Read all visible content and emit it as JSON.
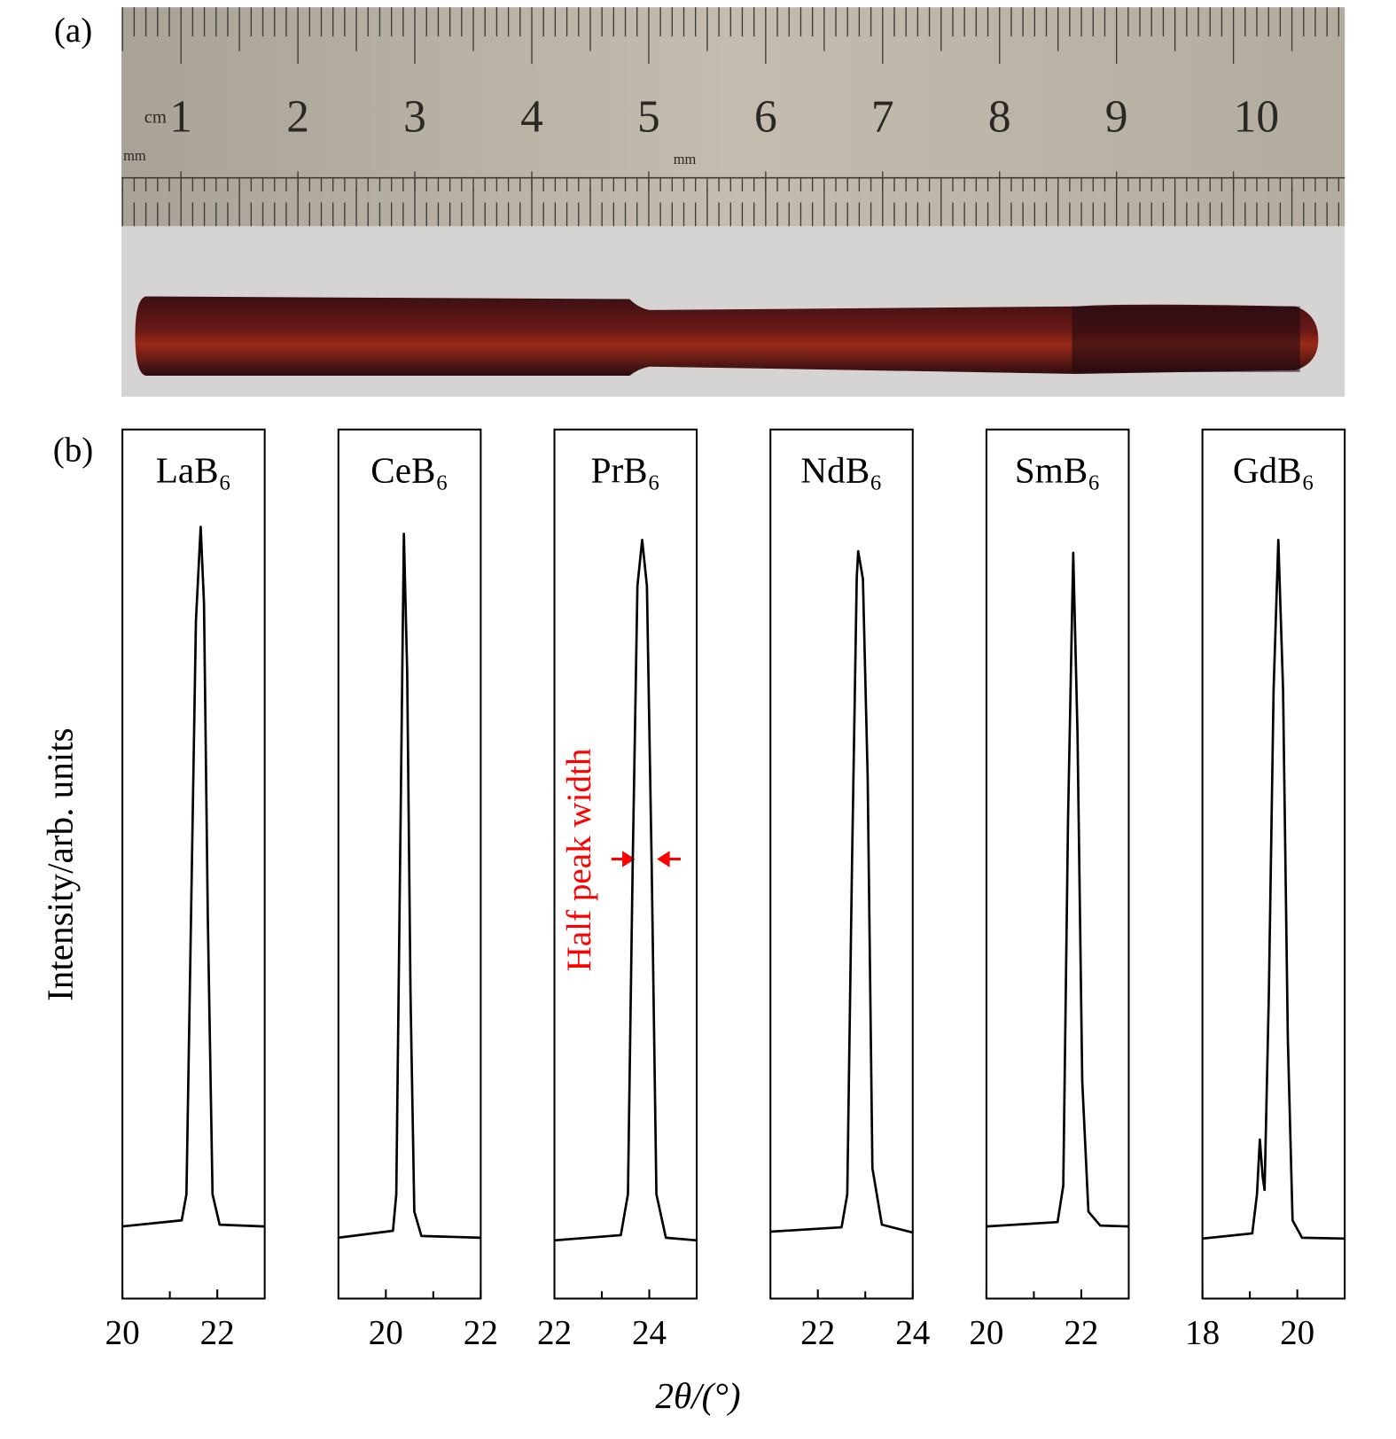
{
  "figure": {
    "label_a": "(a)",
    "label_b": "(b)",
    "xlabel": "2θ/(°)",
    "ylabel": "Intensity/arb. units",
    "annotation": "Half peak width"
  },
  "ruler": {
    "unit_cm": "cm",
    "unit_mm": [
      "mm",
      "mm"
    ],
    "numbers": [
      1,
      2,
      3,
      4,
      5,
      6,
      7,
      8,
      9,
      10
    ]
  },
  "chart_data": [
    {
      "type": "line",
      "title": "LaB₆",
      "color": "#000000",
      "xlim": [
        20,
        23
      ],
      "xticks": [
        20,
        22
      ],
      "xminorticks": [
        21
      ],
      "ylim": [
        0,
        100
      ],
      "x": [
        20,
        21.25,
        21.35,
        21.45,
        21.55,
        21.65,
        21.72,
        21.8,
        21.9,
        22.05,
        23
      ],
      "values": [
        8.3,
        9,
        12,
        45,
        78,
        88.8,
        80,
        44,
        12,
        8.5,
        8.3
      ]
    },
    {
      "type": "line",
      "title": "CeB₆",
      "color": "#000000",
      "xlim": [
        19,
        22
      ],
      "xticks": [
        20,
        22
      ],
      "xminorticks": [
        21
      ],
      "ylim": [
        0,
        100
      ],
      "x": [
        19,
        20.15,
        20.22,
        20.3,
        20.38,
        20.45,
        20.52,
        20.6,
        20.75,
        22
      ],
      "values": [
        7.0,
        7.8,
        12,
        50,
        88,
        72,
        35,
        10,
        7.2,
        7.0
      ]
    },
    {
      "type": "line",
      "title": "PrB₆",
      "color": "#000000",
      "xlim": [
        22,
        25
      ],
      "xticks": [
        22,
        24
      ],
      "xminorticks": [
        23
      ],
      "ylim": [
        0,
        100
      ],
      "x": [
        22,
        23.4,
        23.55,
        23.65,
        23.75,
        23.85,
        23.95,
        24.05,
        24.15,
        24.35,
        25
      ],
      "values": [
        6.7,
        7.3,
        12,
        50,
        82,
        87.3,
        82,
        50,
        12,
        7.0,
        6.7
      ]
    },
    {
      "type": "line",
      "title": "NdB₆",
      "color": "#000000",
      "xlim": [
        21,
        24
      ],
      "xticks": [
        22,
        24
      ],
      "xminorticks": [
        23
      ],
      "ylim": [
        0,
        100
      ],
      "x": [
        21,
        22.5,
        22.62,
        22.72,
        22.82,
        22.85,
        22.95,
        23.05,
        23.15,
        23.35,
        24
      ],
      "values": [
        7.7,
        8.2,
        12,
        50,
        83,
        86,
        82.8,
        60,
        15,
        8.5,
        7.6
      ]
    },
    {
      "type": "line",
      "title": "SmB₆",
      "color": "#000000",
      "xlim": [
        20,
        23
      ],
      "xticks": [
        20,
        22
      ],
      "xminorticks": [
        21
      ],
      "ylim": [
        0,
        100
      ],
      "x": [
        20,
        21.5,
        21.62,
        21.72,
        21.83,
        21.92,
        22.02,
        22.15,
        22.4,
        23
      ],
      "values": [
        8.3,
        8.8,
        13,
        55,
        85.8,
        65,
        25,
        10,
        8.4,
        8.3
      ]
    },
    {
      "type": "line",
      "title": "GdB₆",
      "color": "#000000",
      "xlim": [
        18,
        21
      ],
      "xticks": [
        18,
        20
      ],
      "xminorticks": [
        19
      ],
      "ylim": [
        0,
        100
      ],
      "x": [
        18,
        19.05,
        19.15,
        19.21,
        19.27,
        19.31,
        19.4,
        19.5,
        19.6,
        19.7,
        19.8,
        19.9,
        20.1,
        21
      ],
      "values": [
        6.9,
        7.5,
        12,
        18.3,
        14,
        12.5,
        35,
        70,
        87.3,
        70,
        30,
        9,
        7.0,
        6.9
      ]
    }
  ]
}
